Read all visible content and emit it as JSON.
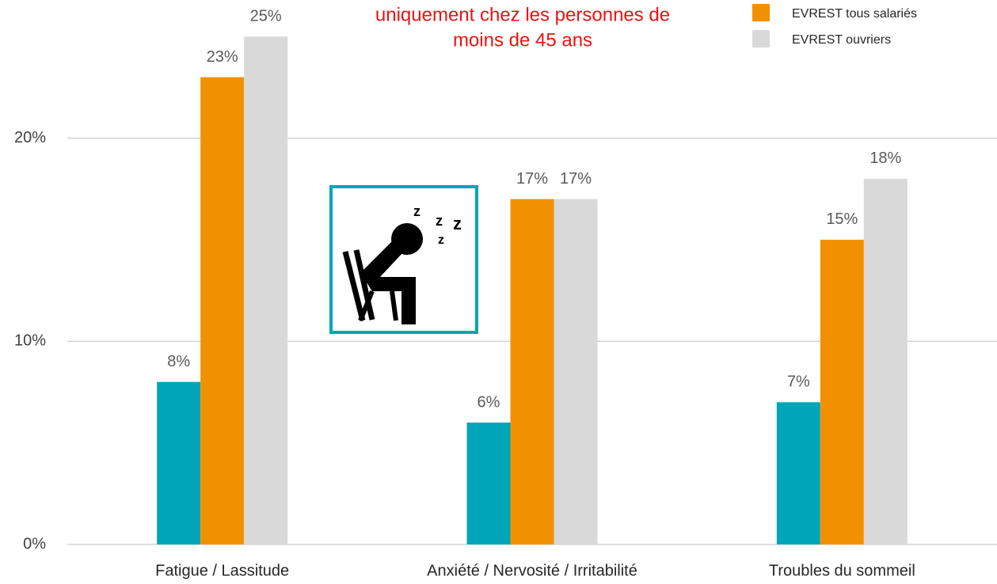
{
  "chart_data": {
    "type": "bar",
    "subtitle": [
      "uniquement chez les personnes de",
      "moins de 45 ans"
    ],
    "categories": [
      "Fatigue / Lassitude",
      "Anxiété / Nervosité / Irritabilité",
      "Troubles du sommeil"
    ],
    "series": [
      {
        "color": "#00a6b8",
        "values": [
          8,
          6,
          7
        ],
        "value_labels": [
          "8%",
          "6%",
          "7%"
        ]
      },
      {
        "name": "EVREST tous salariés",
        "color": "#f29100",
        "values": [
          23,
          17,
          15
        ],
        "value_labels": [
          "23%",
          "17%",
          "15%"
        ]
      },
      {
        "name": "EVREST ouvriers",
        "color": "#d9d9d9",
        "values": [
          25,
          17,
          18
        ],
        "value_labels": [
          "25%",
          "17%",
          "18%"
        ]
      }
    ],
    "ylim": [
      0,
      26.8
    ],
    "yticks": [
      {
        "value": 0,
        "label": "0%"
      },
      {
        "value": 10,
        "label": "10%"
      },
      {
        "value": 20,
        "label": "20%"
      }
    ],
    "grid": true,
    "legend": "top-right"
  }
}
